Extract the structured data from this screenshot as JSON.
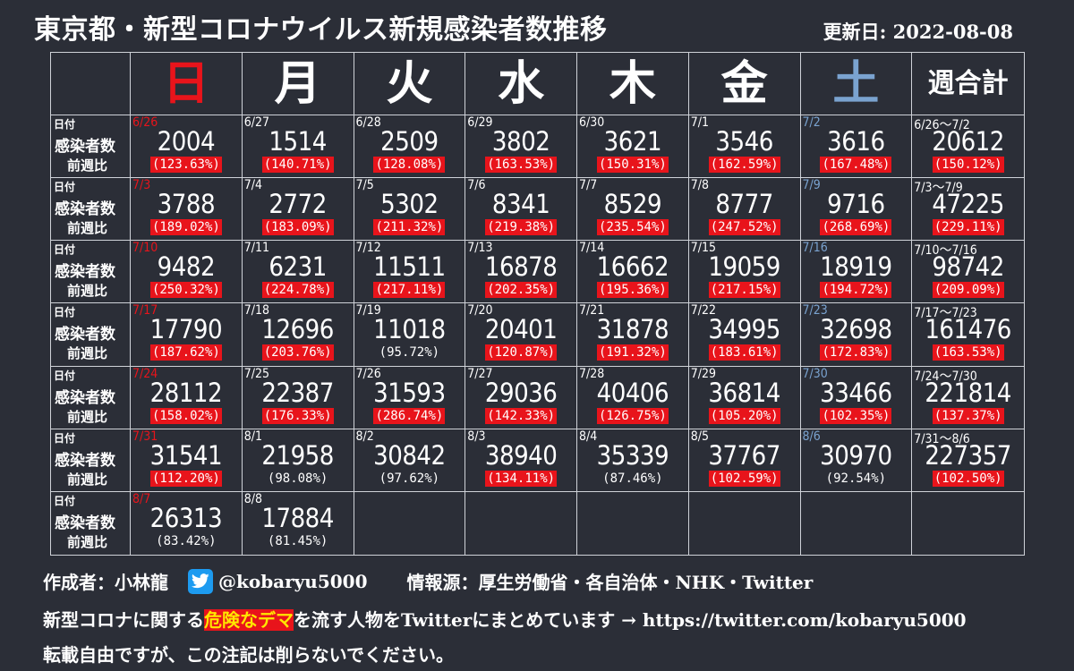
{
  "title": "東京都・新型コロナウイルス新規感染者数推移",
  "updated": "更新日: 2022-08-08",
  "headers": [
    {
      "label": "日",
      "color": "#e8141b"
    },
    {
      "label": "月",
      "color": "#ffffff"
    },
    {
      "label": "火",
      "color": "#ffffff"
    },
    {
      "label": "水",
      "color": "#ffffff"
    },
    {
      "label": "木",
      "color": "#ffffff"
    },
    {
      "label": "金",
      "color": "#ffffff"
    },
    {
      "label": "土",
      "color": "#7aa3d0"
    },
    {
      "label": "週合計",
      "color": "#ffffff"
    }
  ],
  "row_labels": {
    "date": "日付",
    "cases": "感染者数",
    "ratio": "前週比"
  },
  "colors": {
    "sunday": "#e8141b",
    "saturday": "#7aa3d0",
    "increase_bg": "#e8141b",
    "highlight_text": "#ffe600"
  },
  "chart_data": {
    "type": "table",
    "columns": [
      "日",
      "月",
      "火",
      "水",
      "木",
      "金",
      "土",
      "週合計"
    ],
    "weeks": [
      [
        {
          "date": "6/26",
          "cases": "2004",
          "ratio": "(123.63%)",
          "up": true
        },
        {
          "date": "6/27",
          "cases": "1514",
          "ratio": "(140.71%)",
          "up": true
        },
        {
          "date": "6/28",
          "cases": "2509",
          "ratio": "(128.08%)",
          "up": true
        },
        {
          "date": "6/29",
          "cases": "3802",
          "ratio": "(163.53%)",
          "up": true
        },
        {
          "date": "6/30",
          "cases": "3621",
          "ratio": "(150.31%)",
          "up": true
        },
        {
          "date": "7/1",
          "cases": "3546",
          "ratio": "(162.59%)",
          "up": true
        },
        {
          "date": "7/2",
          "cases": "3616",
          "ratio": "(167.48%)",
          "up": true
        },
        {
          "date": "6/26〜7/2",
          "cases": "20612",
          "ratio": "(150.12%)",
          "up": true
        }
      ],
      [
        {
          "date": "7/3",
          "cases": "3788",
          "ratio": "(189.02%)",
          "up": true
        },
        {
          "date": "7/4",
          "cases": "2772",
          "ratio": "(183.09%)",
          "up": true
        },
        {
          "date": "7/5",
          "cases": "5302",
          "ratio": "(211.32%)",
          "up": true
        },
        {
          "date": "7/6",
          "cases": "8341",
          "ratio": "(219.38%)",
          "up": true
        },
        {
          "date": "7/7",
          "cases": "8529",
          "ratio": "(235.54%)",
          "up": true
        },
        {
          "date": "7/8",
          "cases": "8777",
          "ratio": "(247.52%)",
          "up": true
        },
        {
          "date": "7/9",
          "cases": "9716",
          "ratio": "(268.69%)",
          "up": true
        },
        {
          "date": "7/3〜7/9",
          "cases": "47225",
          "ratio": "(229.11%)",
          "up": true
        }
      ],
      [
        {
          "date": "7/10",
          "cases": "9482",
          "ratio": "(250.32%)",
          "up": true
        },
        {
          "date": "7/11",
          "cases": "6231",
          "ratio": "(224.78%)",
          "up": true
        },
        {
          "date": "7/12",
          "cases": "11511",
          "ratio": "(217.11%)",
          "up": true
        },
        {
          "date": "7/13",
          "cases": "16878",
          "ratio": "(202.35%)",
          "up": true
        },
        {
          "date": "7/14",
          "cases": "16662",
          "ratio": "(195.36%)",
          "up": true
        },
        {
          "date": "7/15",
          "cases": "19059",
          "ratio": "(217.15%)",
          "up": true
        },
        {
          "date": "7/16",
          "cases": "18919",
          "ratio": "(194.72%)",
          "up": true
        },
        {
          "date": "7/10〜7/16",
          "cases": "98742",
          "ratio": "(209.09%)",
          "up": true
        }
      ],
      [
        {
          "date": "7/17",
          "cases": "17790",
          "ratio": "(187.62%)",
          "up": true
        },
        {
          "date": "7/18",
          "cases": "12696",
          "ratio": "(203.76%)",
          "up": true
        },
        {
          "date": "7/19",
          "cases": "11018",
          "ratio": "(95.72%)",
          "up": false
        },
        {
          "date": "7/20",
          "cases": "20401",
          "ratio": "(120.87%)",
          "up": true
        },
        {
          "date": "7/21",
          "cases": "31878",
          "ratio": "(191.32%)",
          "up": true
        },
        {
          "date": "7/22",
          "cases": "34995",
          "ratio": "(183.61%)",
          "up": true
        },
        {
          "date": "7/23",
          "cases": "32698",
          "ratio": "(172.83%)",
          "up": true
        },
        {
          "date": "7/17〜7/23",
          "cases": "161476",
          "ratio": "(163.53%)",
          "up": true
        }
      ],
      [
        {
          "date": "7/24",
          "cases": "28112",
          "ratio": "(158.02%)",
          "up": true
        },
        {
          "date": "7/25",
          "cases": "22387",
          "ratio": "(176.33%)",
          "up": true
        },
        {
          "date": "7/26",
          "cases": "31593",
          "ratio": "(286.74%)",
          "up": true
        },
        {
          "date": "7/27",
          "cases": "29036",
          "ratio": "(142.33%)",
          "up": true
        },
        {
          "date": "7/28",
          "cases": "40406",
          "ratio": "(126.75%)",
          "up": true
        },
        {
          "date": "7/29",
          "cases": "36814",
          "ratio": "(105.20%)",
          "up": true
        },
        {
          "date": "7/30",
          "cases": "33466",
          "ratio": "(102.35%)",
          "up": true
        },
        {
          "date": "7/24〜7/30",
          "cases": "221814",
          "ratio": "(137.37%)",
          "up": true
        }
      ],
      [
        {
          "date": "7/31",
          "cases": "31541",
          "ratio": "(112.20%)",
          "up": true
        },
        {
          "date": "8/1",
          "cases": "21958",
          "ratio": "(98.08%)",
          "up": false
        },
        {
          "date": "8/2",
          "cases": "30842",
          "ratio": "(97.62%)",
          "up": false
        },
        {
          "date": "8/3",
          "cases": "38940",
          "ratio": "(134.11%)",
          "up": true
        },
        {
          "date": "8/4",
          "cases": "35339",
          "ratio": "(87.46%)",
          "up": false
        },
        {
          "date": "8/5",
          "cases": "37767",
          "ratio": "(102.59%)",
          "up": true
        },
        {
          "date": "8/6",
          "cases": "30970",
          "ratio": "(92.54%)",
          "up": false
        },
        {
          "date": "7/31〜8/6",
          "cases": "227357",
          "ratio": "(102.50%)",
          "up": true
        }
      ],
      [
        {
          "date": "8/7",
          "cases": "26313",
          "ratio": "(83.42%)",
          "up": false
        },
        {
          "date": "8/8",
          "cases": "17884",
          "ratio": "(81.45%)",
          "up": false
        },
        null,
        null,
        null,
        null,
        null,
        null
      ]
    ]
  },
  "footer": {
    "author": "作成者：小林龍",
    "twitter_icon": "twitter-bird-icon",
    "handle": "@kobaryu5000",
    "source": "情報源：厚生労働省・各自治体・NHK・Twitter",
    "line2_before": "新型コロナに関する",
    "line2_highlight": "危険なデマ",
    "line2_after": "を流す人物をTwitterにまとめています → https://twitter.com/kobaryu5000",
    "line3": "転載自由ですが、この注記は削らないでください。"
  }
}
